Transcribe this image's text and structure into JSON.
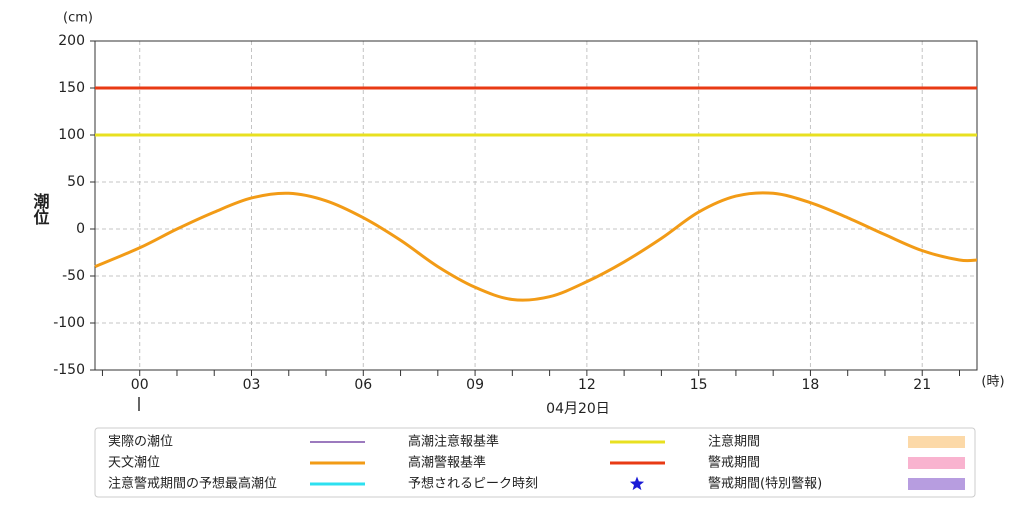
{
  "chart_data": {
    "type": "line",
    "y_unit": "(cm)",
    "y_label": "潮位",
    "x_unit": "(時)",
    "date_label": "04月20日",
    "xlim": [
      -1.2,
      22.47
    ],
    "ylim": [
      -150,
      200
    ],
    "yticks": [
      -150,
      -100,
      -50,
      0,
      50,
      100,
      150,
      200
    ],
    "xticks": [
      {
        "value": 0,
        "label": "00"
      },
      {
        "value": 3,
        "label": "03"
      },
      {
        "value": 6,
        "label": "06"
      },
      {
        "value": 9,
        "label": "09"
      },
      {
        "value": 12,
        "label": "12"
      },
      {
        "value": 15,
        "label": "15"
      },
      {
        "value": 18,
        "label": "18"
      },
      {
        "value": 21,
        "label": "21"
      }
    ],
    "xminorticks": [
      -1,
      0,
      1,
      2,
      3,
      4,
      5,
      6,
      7,
      8,
      9,
      10,
      11,
      12,
      13,
      14,
      15,
      16,
      17,
      18,
      19,
      20,
      21,
      22
    ],
    "grid": true,
    "series": [
      {
        "name": "天文潮位",
        "color": "#f29b16",
        "x": [
          -1.2,
          0,
          1,
          2,
          3,
          4,
          5,
          6,
          7,
          8,
          9,
          10,
          11,
          12,
          13,
          14,
          15,
          16,
          17,
          18,
          19,
          20,
          21,
          22,
          22.47
        ],
        "values": [
          -40,
          -20,
          0,
          18,
          33,
          38,
          30,
          12,
          -12,
          -40,
          -62,
          -75,
          -72,
          -56,
          -35,
          -10,
          18,
          35,
          38,
          28,
          12,
          -6,
          -23,
          -33,
          -33
        ]
      }
    ],
    "thresholds": [
      {
        "name": "高潮注意報基準",
        "color": "#e8e020",
        "value": 100
      },
      {
        "name": "高潮警報基準",
        "color": "#e83a14",
        "value": 150
      }
    ],
    "legend_extra": [
      {
        "name": "実際の潮位",
        "color": "#7b4fa8",
        "symbol": "line"
      },
      {
        "name": "注意警戒期間の予想最高潮位",
        "color": "#2de0f0",
        "symbol": "line"
      },
      {
        "name": "予想されるピーク時刻",
        "color": "#1a1ad6",
        "symbol": "star"
      },
      {
        "name": "注意期間",
        "color": "#fcd9a8",
        "symbol": "band"
      },
      {
        "name": "警戒期間",
        "color": "#f9b3cf",
        "symbol": "band"
      },
      {
        "name": "警戒期間(特別警報)",
        "color": "#b79de0",
        "symbol": "band"
      }
    ]
  }
}
